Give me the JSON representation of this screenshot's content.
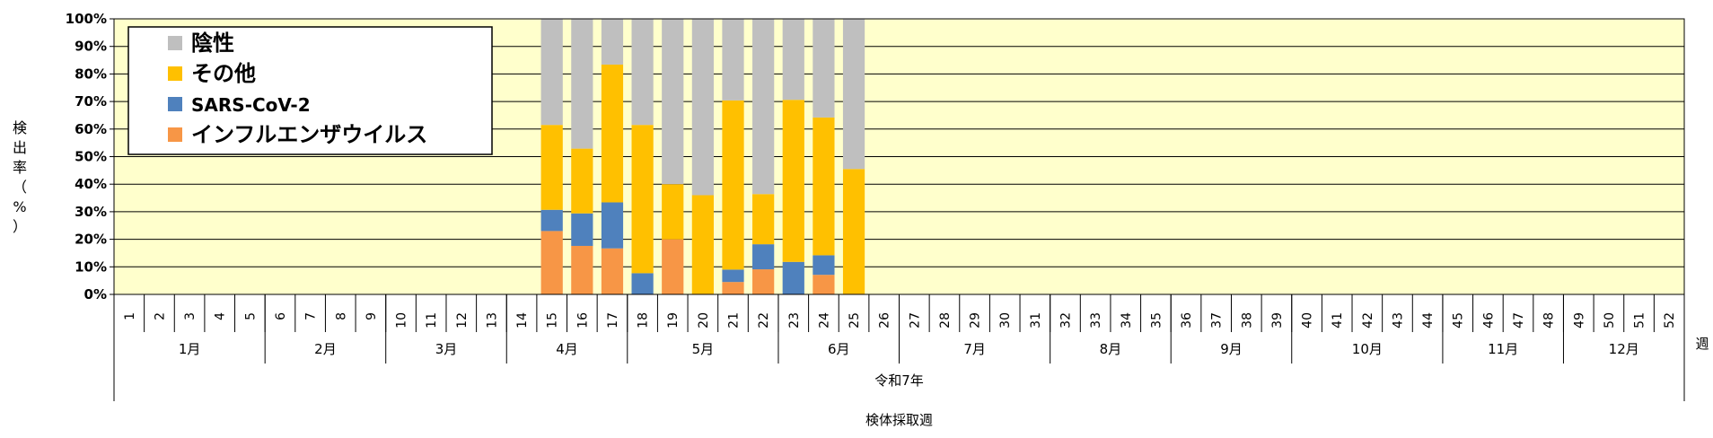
{
  "chart_data": {
    "type": "bar",
    "stacked": true,
    "ylabel": "検出率（%）",
    "ylim": [
      0,
      100
    ],
    "y_ticks": [
      "0%",
      "10%",
      "20%",
      "30%",
      "40%",
      "50%",
      "60%",
      "70%",
      "80%",
      "90%",
      "100%"
    ],
    "grid": true,
    "legend_position": "top-left",
    "categories": [
      "1",
      "2",
      "3",
      "4",
      "5",
      "6",
      "7",
      "8",
      "9",
      "10",
      "11",
      "12",
      "13",
      "14",
      "15",
      "16",
      "17",
      "18",
      "19",
      "20",
      "21",
      "22",
      "23",
      "24",
      "25",
      "26",
      "27",
      "28",
      "29",
      "30",
      "31",
      "32",
      "33",
      "34",
      "35",
      "36",
      "37",
      "38",
      "39",
      "40",
      "41",
      "42",
      "43",
      "44",
      "45",
      "46",
      "47",
      "48",
      "49",
      "50",
      "51",
      "52"
    ],
    "x_unit_label": "週",
    "months": [
      {
        "label": "1月",
        "start_week": 1,
        "end_week": 5
      },
      {
        "label": "2月",
        "start_week": 6,
        "end_week": 9
      },
      {
        "label": "3月",
        "start_week": 10,
        "end_week": 13
      },
      {
        "label": "4月",
        "start_week": 14,
        "end_week": 17
      },
      {
        "label": "5月",
        "start_week": 18,
        "end_week": 22
      },
      {
        "label": "6月",
        "start_week": 23,
        "end_week": 26
      },
      {
        "label": "7月",
        "start_week": 27,
        "end_week": 31
      },
      {
        "label": "8月",
        "start_week": 32,
        "end_week": 35
      },
      {
        "label": "9月",
        "start_week": 36,
        "end_week": 39
      },
      {
        "label": "10月",
        "start_week": 40,
        "end_week": 44
      },
      {
        "label": "11月",
        "start_week": 45,
        "end_week": 48
      },
      {
        "label": "12月",
        "start_week": 49,
        "end_week": 52
      }
    ],
    "year_label": "令和7年",
    "xlabel": "検体採取週",
    "series": [
      {
        "name": "インフルエンザウイルス",
        "color": "#F79646",
        "values": [
          null,
          null,
          null,
          null,
          null,
          null,
          null,
          null,
          null,
          null,
          null,
          null,
          null,
          null,
          23,
          17.6,
          16.7,
          0,
          20,
          0,
          4.5,
          9.1,
          0,
          7.1,
          0,
          null,
          null,
          null,
          null,
          null,
          null,
          null,
          null,
          null,
          null,
          null,
          null,
          null,
          null,
          null,
          null,
          null,
          null,
          null,
          null,
          null,
          null,
          null,
          null,
          null,
          null,
          null
        ]
      },
      {
        "name": "SARS-CoV-2",
        "color": "#4F81BD",
        "values": [
          null,
          null,
          null,
          null,
          null,
          null,
          null,
          null,
          null,
          null,
          null,
          null,
          null,
          null,
          7.7,
          11.8,
          16.7,
          7.7,
          0,
          0,
          4.5,
          9.1,
          11.8,
          7.1,
          0,
          null,
          null,
          null,
          null,
          null,
          null,
          null,
          null,
          null,
          null,
          null,
          null,
          null,
          null,
          null,
          null,
          null,
          null,
          null,
          null,
          null,
          null,
          null,
          null,
          null,
          null,
          null
        ]
      },
      {
        "name": "その他",
        "color": "#FFC000",
        "values": [
          null,
          null,
          null,
          null,
          null,
          null,
          null,
          null,
          null,
          null,
          null,
          null,
          null,
          null,
          30.8,
          23.5,
          50,
          53.8,
          20,
          36,
          61.4,
          18.2,
          58.8,
          50,
          45.5,
          null,
          null,
          null,
          null,
          null,
          null,
          null,
          null,
          null,
          null,
          null,
          null,
          null,
          null,
          null,
          null,
          null,
          null,
          null,
          null,
          null,
          null,
          null,
          null,
          null,
          null,
          null
        ]
      },
      {
        "name": "陰性",
        "color": "#BFBFBF",
        "values": [
          null,
          null,
          null,
          null,
          null,
          null,
          null,
          null,
          null,
          null,
          null,
          null,
          null,
          null,
          38.5,
          47.1,
          16.6,
          38.5,
          60,
          64,
          29.6,
          63.6,
          29.4,
          35.8,
          54.5,
          null,
          null,
          null,
          null,
          null,
          null,
          null,
          null,
          null,
          null,
          null,
          null,
          null,
          null,
          null,
          null,
          null,
          null,
          null,
          null,
          null,
          null,
          null,
          null,
          null,
          null,
          null
        ]
      }
    ],
    "legend": [
      "陰性",
      "その他",
      "SARS-CoV-2",
      "インフルエンザウイルス"
    ]
  }
}
